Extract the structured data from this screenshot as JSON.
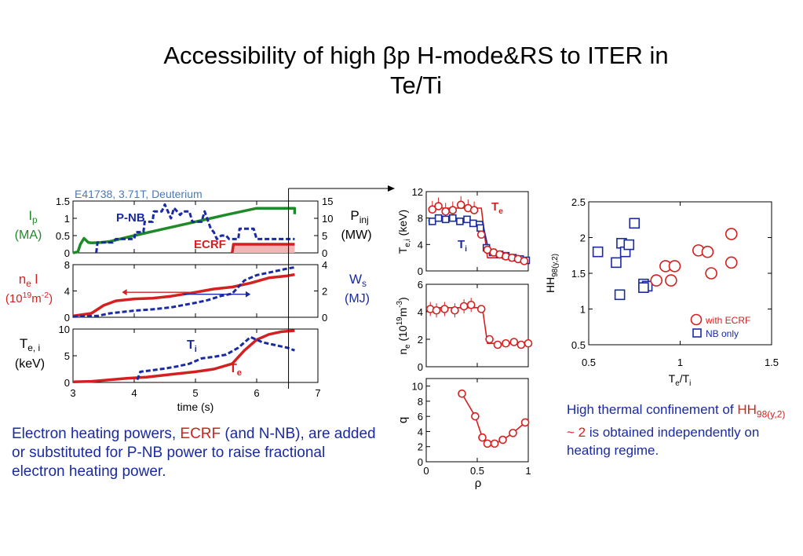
{
  "slide": {
    "title_line1": "Accessibility of high βp H-mode&RS to ITER in",
    "title_line2": "Te/Ti"
  },
  "captions": {
    "left_part1": "Electron heating powers, ",
    "left_ecrf": "ECRF",
    "left_part2": " (and N-NB), are added or substituted for P-NB power to raise fractional electron heating power.",
    "right_part1": "High thermal confinement of ",
    "right_hh": "HH",
    "right_sub": "98(y,2)",
    "right_sim": " ~ 2",
    "right_part2": " is obtained independently on heating regime."
  },
  "colors": {
    "green": "#1f8a2a",
    "red": "#d42020",
    "blue": "#1a2aa0",
    "shot_label": "#4a7ab8",
    "pink_fill": "#f3b5b5"
  },
  "chart_data": [
    {
      "id": "time-traces",
      "type": "line",
      "shot_label": "E41738, 3.71T, Deuterium",
      "xlabel": "time (s)",
      "xticks": [
        "3",
        "4",
        "5",
        "6",
        "7"
      ],
      "xlim": [
        3,
        7
      ],
      "marker_time": 6.52,
      "panels": [
        {
          "id": "power",
          "left_label": "I",
          "left_sub": "p",
          "left_unit": "(MA)",
          "right_label": "P",
          "right_sub": "inj",
          "right_unit": "(MW)",
          "left_ylim": [
            0,
            1.5
          ],
          "left_ticks": [
            "0",
            "0.5",
            "1",
            "1.5"
          ],
          "right_ylim": [
            0,
            15
          ],
          "right_ticks": [
            "0",
            "5",
            "10",
            "15"
          ],
          "annotations": [
            "P-NB",
            "ECRF"
          ],
          "series": [
            {
              "name": "Ip",
              "axis": "left",
              "color": "#1f8a2a",
              "style": "solid",
              "x": [
                3.0,
                3.08,
                3.12,
                3.18,
                3.25,
                3.3,
                3.45,
                3.6,
                4.0,
                4.5,
                5.0,
                5.5,
                6.0,
                6.5,
                6.62,
                6.62
              ],
              "y": [
                0.0,
                0.03,
                0.25,
                0.42,
                0.3,
                0.29,
                0.3,
                0.33,
                0.5,
                0.7,
                0.9,
                1.1,
                1.29,
                1.29,
                1.29,
                1.12
              ]
            },
            {
              "name": "P-NB",
              "axis": "right",
              "color": "#1a2aa0",
              "style": "dashed",
              "x": [
                3.38,
                3.4,
                3.65,
                3.7,
                4.0,
                4.02,
                4.15,
                4.17,
                4.3,
                4.32,
                4.45,
                4.5,
                4.6,
                4.65,
                4.75,
                4.8,
                4.9,
                4.95,
                5.1,
                5.15,
                5.25,
                5.3,
                5.35,
                5.42,
                5.5,
                5.55,
                5.7,
                5.72,
                5.95,
                6.0,
                6.62
              ],
              "y": [
                0,
                3,
                3,
                4,
                4,
                6,
                6,
                9,
                9,
                12,
                12,
                14,
                10,
                13,
                11,
                12,
                12,
                9,
                9,
                12,
                7,
                6,
                4,
                5,
                5,
                4,
                4,
                7,
                7,
                4,
                4
              ]
            },
            {
              "name": "ECRF",
              "axis": "right",
              "color": "#d42020",
              "style": "solid",
              "fill": "#f3b5b5",
              "x": [
                5.6,
                5.62,
                5.7,
                6.62
              ],
              "y": [
                0,
                2.5,
                2.5,
                2.5
              ]
            }
          ]
        },
        {
          "id": "density",
          "left_label": "n",
          "left_sub": "e",
          "left_label2": " l",
          "left_unit_pre": "(10",
          "left_unit_sup": "19",
          "left_unit_post": "m",
          "left_unit_sup2": "-2",
          "left_unit_end": ")",
          "right_label": "W",
          "right_sub": "s",
          "right_unit": "(MJ)",
          "left_ylim": [
            0,
            8
          ],
          "left_ticks": [
            "0",
            "4",
            "8"
          ],
          "right_ylim": [
            0,
            4
          ],
          "right_ticks": [
            "0",
            "2",
            "4"
          ],
          "series": [
            {
              "name": "ne l",
              "axis": "left",
              "color": "#d42020",
              "style": "solid",
              "x": [
                3.0,
                3.3,
                3.5,
                3.7,
                4.0,
                4.3,
                4.6,
                5.0,
                5.3,
                5.6,
                5.9,
                6.2,
                6.5,
                6.62
              ],
              "y": [
                0.2,
                0.6,
                1.8,
                2.5,
                2.8,
                2.9,
                3.2,
                3.8,
                4.3,
                4.6,
                5.2,
                6.0,
                6.3,
                6.5
              ]
            },
            {
              "name": "Ws",
              "axis": "right",
              "color": "#1a2aa0",
              "style": "dashed",
              "x": [
                3.0,
                3.4,
                3.6,
                3.8,
                4.0,
                4.3,
                4.6,
                5.0,
                5.2,
                5.4,
                5.6,
                5.8,
                6.0,
                6.2,
                6.5,
                6.62
              ],
              "y": [
                0.05,
                0.1,
                0.3,
                0.4,
                0.5,
                0.6,
                0.75,
                1.1,
                1.3,
                1.6,
                1.8,
                2.8,
                3.2,
                3.4,
                3.7,
                3.8
              ]
            }
          ]
        },
        {
          "id": "temperature",
          "left_label": "T",
          "left_sub": "e, i",
          "left_unit": "(keV)",
          "left_ylim": [
            0,
            10
          ],
          "left_ticks": [
            "0",
            "5",
            "10"
          ],
          "annotations": [
            "T",
            "T"
          ],
          "series": [
            {
              "name": "Te",
              "axis": "left",
              "color": "#d42020",
              "style": "solid",
              "x": [
                3.0,
                3.3,
                3.6,
                3.9,
                4.2,
                4.6,
                5.0,
                5.3,
                5.6,
                5.8,
                6.0,
                6.2,
                6.4,
                6.62
              ],
              "y": [
                0.1,
                0.2,
                0.5,
                0.8,
                1.0,
                1.5,
                2.0,
                2.5,
                3.5,
                6.0,
                8.0,
                9.0,
                9.5,
                9.7
              ]
            },
            {
              "name": "Ti",
              "axis": "left",
              "color": "#1a2aa0",
              "style": "dashed",
              "x": [
                4.05,
                4.1,
                4.3,
                4.5,
                4.7,
                4.9,
                5.1,
                5.3,
                5.5,
                5.7,
                5.9,
                6.0,
                6.1,
                6.3,
                6.5,
                6.62
              ],
              "y": [
                0.5,
                2.0,
                2.3,
                2.6,
                3.0,
                3.5,
                4.5,
                4.8,
                5.2,
                6.5,
                8.5,
                8.0,
                7.5,
                7.0,
                6.5,
                6.0
              ]
            }
          ]
        }
      ]
    },
    {
      "id": "profiles",
      "type": "scatter",
      "xlabel": "ρ",
      "xticks": [
        "0",
        "0.5",
        "1"
      ],
      "xlim": [
        0,
        1
      ],
      "panels": [
        {
          "id": "Tprofile",
          "ylabel": "T",
          "ylabel_sub": "e,i",
          "ylabel_unit": " (keV)",
          "ylim": [
            0,
            12
          ],
          "yticks": [
            "0",
            "4",
            "8",
            "12"
          ],
          "label_Te": "T",
          "label_Te_sub": "e",
          "label_Ti": "T",
          "label_Ti_sub": "i",
          "Te": {
            "x": [
              0.06,
              0.12,
              0.19,
              0.26,
              0.34,
              0.41,
              0.47,
              0.54,
              0.6,
              0.66,
              0.72,
              0.78,
              0.84,
              0.9,
              0.96
            ],
            "y": [
              9.3,
              9.8,
              9.0,
              9.2,
              10.0,
              9.5,
              9.2,
              5.5,
              3.2,
              2.8,
              2.5,
              2.2,
              2.0,
              1.8,
              1.5
            ]
          },
          "Ti": {
            "x": [
              0.06,
              0.12,
              0.19,
              0.26,
              0.33,
              0.4,
              0.46,
              0.53,
              0.59,
              0.65,
              0.72,
              0.78,
              0.85,
              0.92,
              0.98
            ],
            "y": [
              7.5,
              8.0,
              7.8,
              8.0,
              7.5,
              7.8,
              7.2,
              6.5,
              3.5,
              2.8,
              2.5,
              2.3,
              2.0,
              1.8,
              1.6
            ]
          },
          "Te_fit": {
            "x": [
              0.02,
              0.54,
              0.6,
              1.0
            ],
            "y": [
              9.5,
              9.5,
              2.0,
              2.0
            ]
          },
          "Ti_fit": {
            "x": [
              0.02,
              0.55,
              0.62,
              1.0
            ],
            "y": [
              7.6,
              7.5,
              2.5,
              1.2
            ]
          }
        },
        {
          "id": "neprofile",
          "ylabel": "n",
          "ylabel_sub": "e",
          "ylabel_unit": " (10",
          "ylabel_sup": "19",
          "ylabel_unit2": "m",
          "ylabel_sup2": "-3",
          "ylabel_end": ")",
          "ylim": [
            0,
            6
          ],
          "yticks": [
            "0",
            "2",
            "4",
            "6"
          ],
          "ne": {
            "x": [
              0.04,
              0.1,
              0.18,
              0.28,
              0.37,
              0.44,
              0.54,
              0.62,
              0.7,
              0.78,
              0.86,
              0.93,
              1.0
            ],
            "y": [
              4.2,
              4.1,
              4.2,
              4.1,
              4.4,
              4.5,
              4.2,
              2.0,
              1.6,
              1.7,
              1.8,
              1.6,
              1.7
            ]
          },
          "ne_fit": {
            "x": [
              0.0,
              0.55,
              0.6,
              1.0
            ],
            "y": [
              4.3,
              4.3,
              1.7,
              1.7
            ]
          }
        },
        {
          "id": "qprofile",
          "ylabel": "q",
          "ylim": [
            0,
            11
          ],
          "yticks": [
            "0",
            "2",
            "4",
            "6",
            "8",
            "10"
          ],
          "q": {
            "x": [
              0.35,
              0.48,
              0.55,
              0.6,
              0.67,
              0.75,
              0.85,
              0.97
            ],
            "y": [
              9.0,
              6.0,
              3.2,
              2.4,
              2.4,
              2.9,
              3.8,
              5.2
            ]
          }
        }
      ]
    },
    {
      "id": "hh-vs-teti",
      "type": "scatter",
      "xlabel": "T",
      "xlabel_sub": "e",
      "xlabel_mid": "/T",
      "xlabel_sub2": "i",
      "ylabel": "HH",
      "ylabel_sub": "98(y,2)",
      "xlim": [
        0.5,
        1.5
      ],
      "ylim": [
        0.5,
        2.5
      ],
      "xticks": [
        "0.5",
        "1",
        "1.5"
      ],
      "yticks": [
        "0.5",
        "1",
        "1.5",
        "2",
        "2.5"
      ],
      "legend": [
        "with ECRF",
        "NB only"
      ],
      "legend_position": "bottom-right",
      "series": [
        {
          "name": "with ECRF",
          "color": "#d42020",
          "marker": "circle",
          "x": [
            0.87,
            0.92,
            0.97,
            0.95,
            1.1,
            1.15,
            1.17,
            1.28,
            1.28
          ],
          "y": [
            1.4,
            1.6,
            1.6,
            1.4,
            1.82,
            1.8,
            1.5,
            2.05,
            1.65
          ]
        },
        {
          "name": "NB only",
          "color": "#1a2aa0",
          "marker": "square",
          "x": [
            0.55,
            0.65,
            0.67,
            0.68,
            0.7,
            0.72,
            0.75,
            0.8,
            0.82,
            0.8
          ],
          "y": [
            1.8,
            1.65,
            1.2,
            1.92,
            1.8,
            1.9,
            2.2,
            1.35,
            1.32,
            1.3
          ]
        }
      ]
    }
  ]
}
